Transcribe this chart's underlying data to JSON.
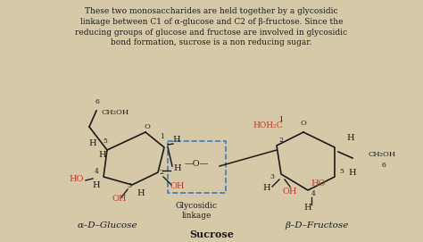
{
  "bg_color": "#d6c9a8",
  "text_color_black": "#1a1a1a",
  "text_color_red": "#c0392b",
  "paragraph": "These two monosaccharides are held together by a glycosidic\nlinkage between C1 of α-glucose and C2 of β-fructose. Since the\nreducing groups of glucose and fructose are involved in glycosidic\nbond formation, sucrose is a non reducing sugar.",
  "label_glucose": "α–D–Glucose",
  "label_fructose": "β–D–Fructose",
  "label_sucrose": "Sucrose",
  "label_glycosidic": "Glycosidic\nlinkage"
}
